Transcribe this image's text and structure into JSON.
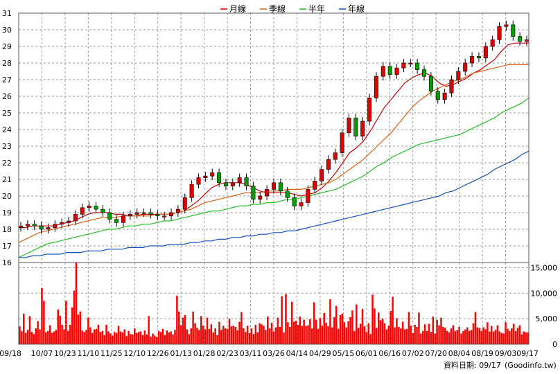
{
  "chart_data": [
    {
      "type": "candlestick",
      "legend": [
        {
          "name": "月線",
          "color": "#cc0000"
        },
        {
          "name": "季線",
          "color": "#e06010"
        },
        {
          "name": "半年",
          "color": "#22c022"
        },
        {
          "name": "年線",
          "color": "#1050c0"
        }
      ],
      "legend_placement": "top-center",
      "ylim": [
        16,
        31
      ],
      "yticks": [
        16,
        17,
        18,
        19,
        20,
        21,
        22,
        23,
        24,
        25,
        26,
        27,
        28,
        29,
        30,
        31
      ],
      "xticks": [
        "09/18",
        "10/07",
        "10/23",
        "11/10",
        "11/25",
        "12/10",
        "12/26",
        "01/13",
        "01/28",
        "02/23",
        "03/11",
        "03/26",
        "04/14",
        "04/29",
        "05/15",
        "06/01",
        "06/16",
        "07/02",
        "07/20",
        "08/04",
        "08/19",
        "09/03",
        "09/17"
      ],
      "grid": true,
      "up_color": "#e00000",
      "down_color": "#00a000",
      "price_close": [
        18.2,
        18.3,
        18.2,
        18.0,
        18.1,
        18.3,
        18.4,
        18.5,
        18.9,
        19.3,
        19.4,
        19.2,
        19.0,
        18.6,
        18.4,
        18.8,
        18.9,
        19.0,
        19.0,
        18.9,
        18.8,
        18.8,
        19.0,
        19.2,
        19.9,
        20.7,
        21.1,
        21.2,
        21.4,
        20.8,
        20.6,
        20.8,
        21.1,
        20.6,
        19.8,
        20.0,
        20.4,
        20.8,
        20.3,
        19.9,
        19.4,
        19.6,
        20.4,
        20.9,
        21.6,
        22.2,
        22.6,
        23.8,
        24.7,
        23.6,
        24.5,
        25.9,
        27.2,
        27.8,
        27.3,
        27.7,
        28.0,
        28.0,
        27.6,
        27.2,
        26.3,
        25.8,
        26.2,
        27.0,
        27.5,
        28.0,
        28.4,
        28.3,
        29.0,
        29.4,
        30.2,
        30.3,
        29.6,
        29.3,
        29.4
      ],
      "ma_month": [
        18.1,
        18.1,
        18.2,
        18.2,
        18.2,
        18.2,
        18.3,
        18.4,
        18.5,
        18.7,
        18.9,
        19.0,
        19.0,
        19.0,
        18.9,
        18.9,
        18.8,
        18.8,
        18.9,
        18.9,
        18.9,
        18.9,
        18.9,
        19.0,
        19.1,
        19.4,
        19.7,
        20.1,
        20.5,
        20.7,
        20.8,
        20.8,
        20.8,
        20.7,
        20.5,
        20.3,
        20.2,
        20.2,
        20.2,
        20.2,
        20.1,
        20.0,
        20.1,
        20.2,
        20.5,
        20.9,
        21.4,
        22.0,
        22.6,
        22.9,
        23.3,
        23.9,
        24.6,
        25.3,
        25.8,
        26.3,
        26.8,
        27.1,
        27.3,
        27.4,
        27.2,
        26.8,
        26.6,
        26.7,
        26.9,
        27.1,
        27.4,
        27.6,
        27.9,
        28.2,
        28.7,
        29.1,
        29.2,
        29.2,
        29.2
      ],
      "ma_quarter": [
        17.2,
        17.4,
        17.6,
        17.8,
        17.9,
        18.0,
        18.1,
        18.2,
        18.3,
        18.4,
        18.5,
        18.6,
        18.7,
        18.7,
        18.7,
        18.8,
        18.8,
        18.8,
        18.8,
        18.8,
        18.9,
        18.9,
        18.9,
        19.0,
        19.1,
        19.2,
        19.4,
        19.6,
        19.7,
        19.8,
        19.9,
        20.0,
        20.1,
        20.2,
        20.2,
        20.2,
        20.3,
        20.3,
        20.3,
        20.4,
        20.4,
        20.4,
        20.5,
        20.6,
        20.7,
        20.8,
        21.0,
        21.3,
        21.6,
        21.9,
        22.2,
        22.6,
        23.0,
        23.4,
        23.8,
        24.3,
        24.8,
        25.3,
        25.7,
        26.0,
        26.3,
        26.5,
        26.7,
        26.9,
        27.0,
        27.2,
        27.4,
        27.5,
        27.6,
        27.7,
        27.8,
        27.9,
        27.9,
        27.9,
        27.9
      ],
      "ma_half": [
        16.3,
        16.5,
        16.7,
        16.9,
        17.1,
        17.2,
        17.3,
        17.4,
        17.5,
        17.6,
        17.7,
        17.8,
        17.9,
        18.0,
        18.0,
        18.1,
        18.2,
        18.2,
        18.3,
        18.3,
        18.4,
        18.5,
        18.5,
        18.6,
        18.7,
        18.8,
        18.9,
        19.0,
        19.1,
        19.1,
        19.2,
        19.3,
        19.4,
        19.4,
        19.5,
        19.5,
        19.6,
        19.6,
        19.7,
        19.8,
        19.8,
        19.9,
        20.0,
        20.1,
        20.2,
        20.3,
        20.4,
        20.6,
        20.8,
        21.0,
        21.2,
        21.5,
        21.8,
        22.0,
        22.3,
        22.5,
        22.7,
        22.9,
        23.1,
        23.2,
        23.3,
        23.4,
        23.5,
        23.6,
        23.7,
        23.9,
        24.1,
        24.3,
        24.5,
        24.7,
        25.0,
        25.2,
        25.4,
        25.6,
        25.9
      ],
      "ma_year": [
        16.3,
        16.3,
        16.4,
        16.4,
        16.5,
        16.5,
        16.5,
        16.6,
        16.6,
        16.6,
        16.7,
        16.7,
        16.7,
        16.8,
        16.8,
        16.8,
        16.9,
        16.9,
        16.9,
        17.0,
        17.0,
        17.0,
        17.1,
        17.1,
        17.1,
        17.2,
        17.2,
        17.3,
        17.3,
        17.4,
        17.4,
        17.5,
        17.5,
        17.6,
        17.6,
        17.7,
        17.7,
        17.8,
        17.8,
        17.9,
        17.9,
        18.0,
        18.1,
        18.2,
        18.3,
        18.4,
        18.5,
        18.6,
        18.7,
        18.8,
        18.9,
        19.0,
        19.1,
        19.2,
        19.3,
        19.4,
        19.5,
        19.6,
        19.7,
        19.8,
        19.9,
        20.0,
        20.2,
        20.3,
        20.5,
        20.7,
        20.9,
        21.1,
        21.3,
        21.6,
        21.8,
        22.0,
        22.2,
        22.5,
        22.7
      ]
    },
    {
      "type": "bar",
      "series": [
        {
          "name": "volume",
          "color": "#ff0000"
        }
      ],
      "ylim": [
        0,
        16000
      ],
      "yticks": [
        0,
        5000,
        10000,
        15000
      ],
      "ytick_labels": [
        "0",
        "5,000",
        "10,000",
        "15,000"
      ],
      "values": [
        3500,
        2600,
        6000,
        2200,
        2800,
        5500,
        2400,
        2000,
        3100,
        4500,
        2900,
        11000,
        8500,
        2300,
        2600,
        3700,
        2200,
        2500,
        2800,
        6800,
        5600,
        3800,
        2900,
        8500,
        2600,
        3800,
        7200,
        10500,
        17000,
        5800,
        6400,
        2700,
        2400,
        2800,
        5200,
        3300,
        2200,
        2900,
        3000,
        3800,
        2400,
        2600,
        1800,
        3800,
        2500,
        2100,
        1700,
        2400,
        2200,
        3600,
        2500,
        2300,
        2900,
        1600,
        2600,
        2000,
        1900,
        3100,
        2200,
        2400,
        2500,
        1800,
        2700,
        1900,
        5500,
        1500,
        2100,
        1700,
        1400,
        2600,
        2400,
        3000,
        1800,
        2700,
        2300,
        2500,
        1900,
        2800,
        9500,
        6400,
        3700,
        5200,
        5700,
        2900,
        2000,
        3100,
        6400,
        4100,
        3200,
        2800,
        5500,
        3600,
        2900,
        5200,
        3000,
        3900,
        2300,
        3100,
        1800,
        4400,
        2800,
        3600,
        3100,
        3000,
        5000,
        3500,
        3600,
        3400,
        2700,
        4400,
        6300,
        3100,
        2400,
        3600,
        2200,
        3100,
        2000,
        3800,
        2300,
        4100,
        3900,
        3600,
        2800,
        5400,
        3100,
        4200,
        2500,
        3300,
        5200,
        3400,
        9400,
        2300,
        9800,
        4300,
        3400,
        8300,
        4400,
        4600,
        3800,
        5400,
        3600,
        4800,
        3600,
        3700,
        4900,
        3100,
        8200,
        4800,
        3000,
        5100,
        3600,
        6100,
        4200,
        3500,
        8800,
        3300,
        5300,
        7500,
        3000,
        5700,
        6000,
        4300,
        3300,
        4500,
        5300,
        6600,
        2600,
        7800,
        3200,
        4000,
        6900,
        3500,
        2400,
        4100,
        2000,
        9700,
        7000,
        3200,
        6200,
        4700,
        5000,
        4100,
        2900,
        3600,
        6500,
        9300,
        3300,
        5100,
        3400,
        3100,
        4400,
        2900,
        3000,
        6300,
        3600,
        2200,
        3800,
        3400,
        6200,
        2100,
        2600,
        3900,
        2600,
        4000,
        2400,
        5400,
        2100,
        4800,
        3700,
        5200,
        3400,
        3200,
        2600,
        2300,
        3100,
        3700,
        2600,
        2800,
        3400,
        2100,
        2600,
        2900,
        3300,
        2600,
        2800,
        4100,
        6300,
        3300,
        3200,
        2600,
        3300,
        2900,
        4300,
        2500,
        3600,
        2500,
        2800,
        3700,
        2500,
        2200,
        2100,
        4300,
        3000,
        2600,
        3100,
        4000,
        2600,
        3200,
        3700,
        1900,
        2500,
        2300,
        2300
      ]
    }
  ],
  "footer": {
    "date_label": "資料日期: 09/17",
    "source": "(Goodinfo.tw)"
  }
}
